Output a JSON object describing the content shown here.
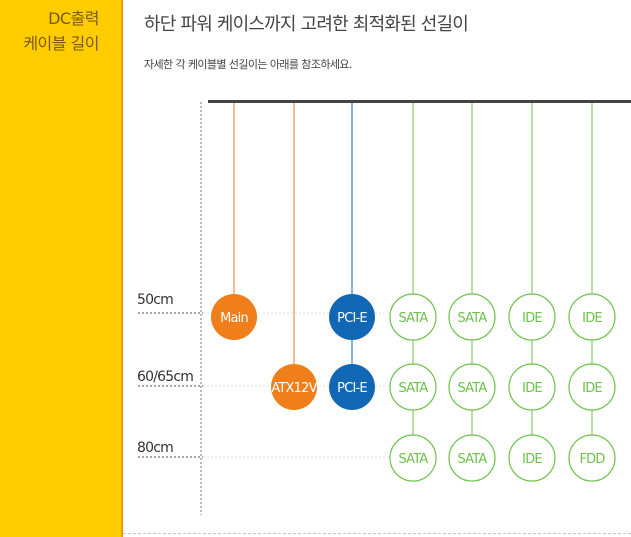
{
  "sidebar": {
    "title_line1": "DC출력",
    "title_line2": "케이블 길이"
  },
  "header": {
    "title": "하단 파워 케이스까지 고려한 최적화된 선길이",
    "subtitle": "자세한 각 케이블별 선길이는 아래를 참조하세요."
  },
  "colors": {
    "orange": "#f07f1b",
    "blue": "#1167b4",
    "green": "#6cc24a",
    "bar": "#444444",
    "sidebar": "#ffcc00"
  },
  "length_labels": [
    "50cm",
    "60/65cm",
    "80cm"
  ],
  "cables": [
    {
      "color": "orange",
      "nodes": [
        {
          "label": "Main",
          "row": 0,
          "style": "filled"
        }
      ]
    },
    {
      "color": "orange",
      "nodes": [
        {
          "label": "ATX12V",
          "row": 1,
          "style": "filled"
        }
      ]
    },
    {
      "color": "blue",
      "nodes": [
        {
          "label": "PCI-E",
          "row": 0,
          "style": "filled"
        },
        {
          "label": "PCI-E",
          "row": 1,
          "style": "filled"
        }
      ]
    },
    {
      "color": "green",
      "nodes": [
        {
          "label": "SATA",
          "row": 0,
          "style": "outline"
        },
        {
          "label": "SATA",
          "row": 1,
          "style": "outline"
        },
        {
          "label": "SATA",
          "row": 2,
          "style": "outline"
        }
      ]
    },
    {
      "color": "green",
      "nodes": [
        {
          "label": "SATA",
          "row": 0,
          "style": "outline"
        },
        {
          "label": "SATA",
          "row": 1,
          "style": "outline"
        },
        {
          "label": "SATA",
          "row": 2,
          "style": "outline"
        }
      ]
    },
    {
      "color": "green",
      "nodes": [
        {
          "label": "IDE",
          "row": 0,
          "style": "outline"
        },
        {
          "label": "IDE",
          "row": 1,
          "style": "outline"
        },
        {
          "label": "IDE",
          "row": 2,
          "style": "outline"
        }
      ]
    },
    {
      "color": "green",
      "nodes": [
        {
          "label": "IDE",
          "row": 0,
          "style": "outline"
        },
        {
          "label": "IDE",
          "row": 1,
          "style": "outline"
        },
        {
          "label": "FDD",
          "row": 2,
          "style": "outline"
        }
      ]
    }
  ]
}
